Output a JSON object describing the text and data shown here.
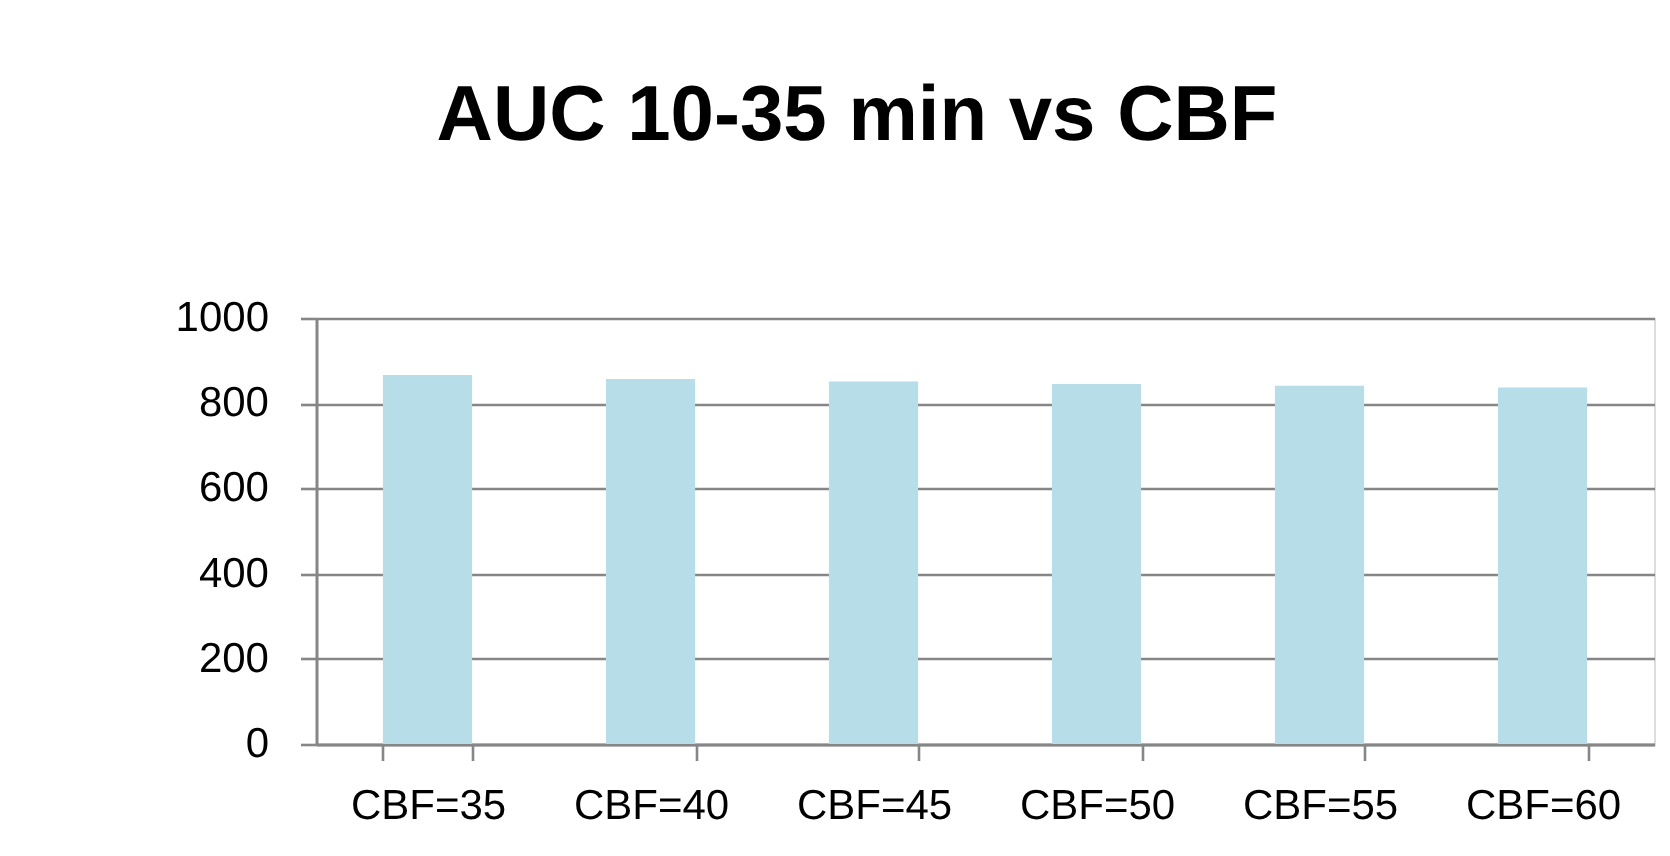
{
  "chart_data": {
    "type": "bar",
    "title": "AUC 10-35 min vs CBF",
    "categories": [
      "CBF=35",
      "CBF=40",
      "CBF=45",
      "CBF=50",
      "CBF=55",
      "CBF=60"
    ],
    "values": [
      866,
      857,
      851,
      845,
      841,
      837
    ],
    "color": "#b7dde8",
    "ylim": [
      0,
      1000
    ],
    "yticks": [
      0,
      200,
      400,
      600,
      800,
      1000
    ],
    "grid": "y"
  }
}
